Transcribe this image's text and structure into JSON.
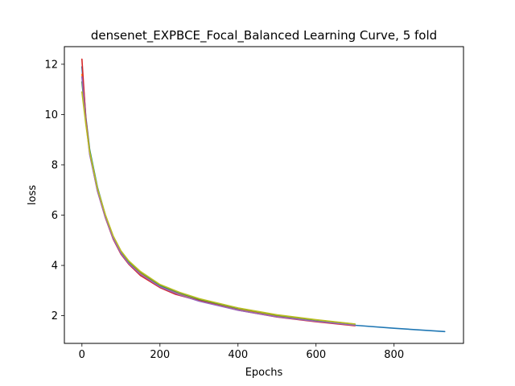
{
  "chart_data": {
    "type": "line",
    "title": "densenet_EXPBCE_Focal_Balanced Learning Curve, 5 fold",
    "xlabel": "Epochs",
    "ylabel": "loss",
    "xlim": [
      -45,
      978
    ],
    "ylim": [
      0.9,
      12.7
    ],
    "xticks": [
      0,
      200,
      400,
      600,
      800
    ],
    "yticks": [
      2,
      4,
      6,
      8,
      10,
      12
    ],
    "grid": false,
    "legend": "none",
    "series": [
      {
        "color": "#1f77b4",
        "x": [
          0,
          10,
          20,
          40,
          60,
          80,
          100,
          120,
          150,
          200,
          250,
          300,
          400,
          500,
          600,
          700,
          800,
          930
        ],
        "y": [
          11.9,
          9.9,
          8.6,
          7.1,
          6.0,
          5.15,
          4.55,
          4.15,
          3.72,
          3.2,
          2.88,
          2.63,
          2.27,
          2.0,
          1.8,
          1.62,
          1.5,
          1.37
        ]
      },
      {
        "color": "#ff7f0e",
        "x": [
          0,
          10,
          20,
          40,
          60,
          80,
          100,
          120,
          150,
          200,
          250,
          300,
          400,
          500,
          600,
          690
        ],
        "y": [
          11.6,
          9.8,
          8.5,
          7.0,
          5.95,
          5.1,
          4.5,
          4.1,
          3.68,
          3.15,
          2.85,
          2.6,
          2.24,
          1.98,
          1.78,
          1.63
        ]
      },
      {
        "color": "#2ca02c",
        "x": [
          0,
          10,
          20,
          40,
          60,
          80,
          100,
          120,
          150,
          200,
          250,
          300,
          400,
          500,
          600,
          700
        ],
        "y": [
          11.3,
          9.75,
          8.55,
          7.05,
          6.0,
          5.15,
          4.55,
          4.15,
          3.74,
          3.22,
          2.92,
          2.66,
          2.3,
          2.02,
          1.83,
          1.66
        ]
      },
      {
        "color": "#d62728",
        "x": [
          0,
          10,
          20,
          40,
          60,
          80,
          100,
          120,
          150,
          200,
          240,
          300,
          400,
          500,
          600,
          700
        ],
        "y": [
          12.2,
          9.8,
          8.45,
          6.95,
          5.9,
          5.05,
          4.45,
          4.05,
          3.6,
          3.12,
          2.85,
          2.6,
          2.22,
          1.95,
          1.76,
          1.6
        ]
      },
      {
        "color": "#9467bd",
        "x": [
          0,
          10,
          20,
          40,
          60,
          80,
          100,
          120,
          150,
          200,
          250,
          300,
          400,
          500,
          600,
          700
        ],
        "y": [
          11.5,
          9.7,
          8.4,
          6.95,
          5.92,
          5.08,
          4.48,
          4.08,
          3.65,
          3.15,
          2.83,
          2.58,
          2.22,
          1.96,
          1.78,
          1.62
        ]
      },
      {
        "color": "#bcbd22",
        "x": [
          0,
          10,
          20,
          40,
          60,
          80,
          100,
          120,
          150,
          200,
          250,
          300,
          400,
          500,
          600,
          700
        ],
        "y": [
          10.9,
          9.6,
          8.5,
          7.05,
          6.02,
          5.18,
          4.58,
          4.18,
          3.76,
          3.24,
          2.93,
          2.68,
          2.31,
          2.04,
          1.84,
          1.67
        ]
      }
    ]
  }
}
